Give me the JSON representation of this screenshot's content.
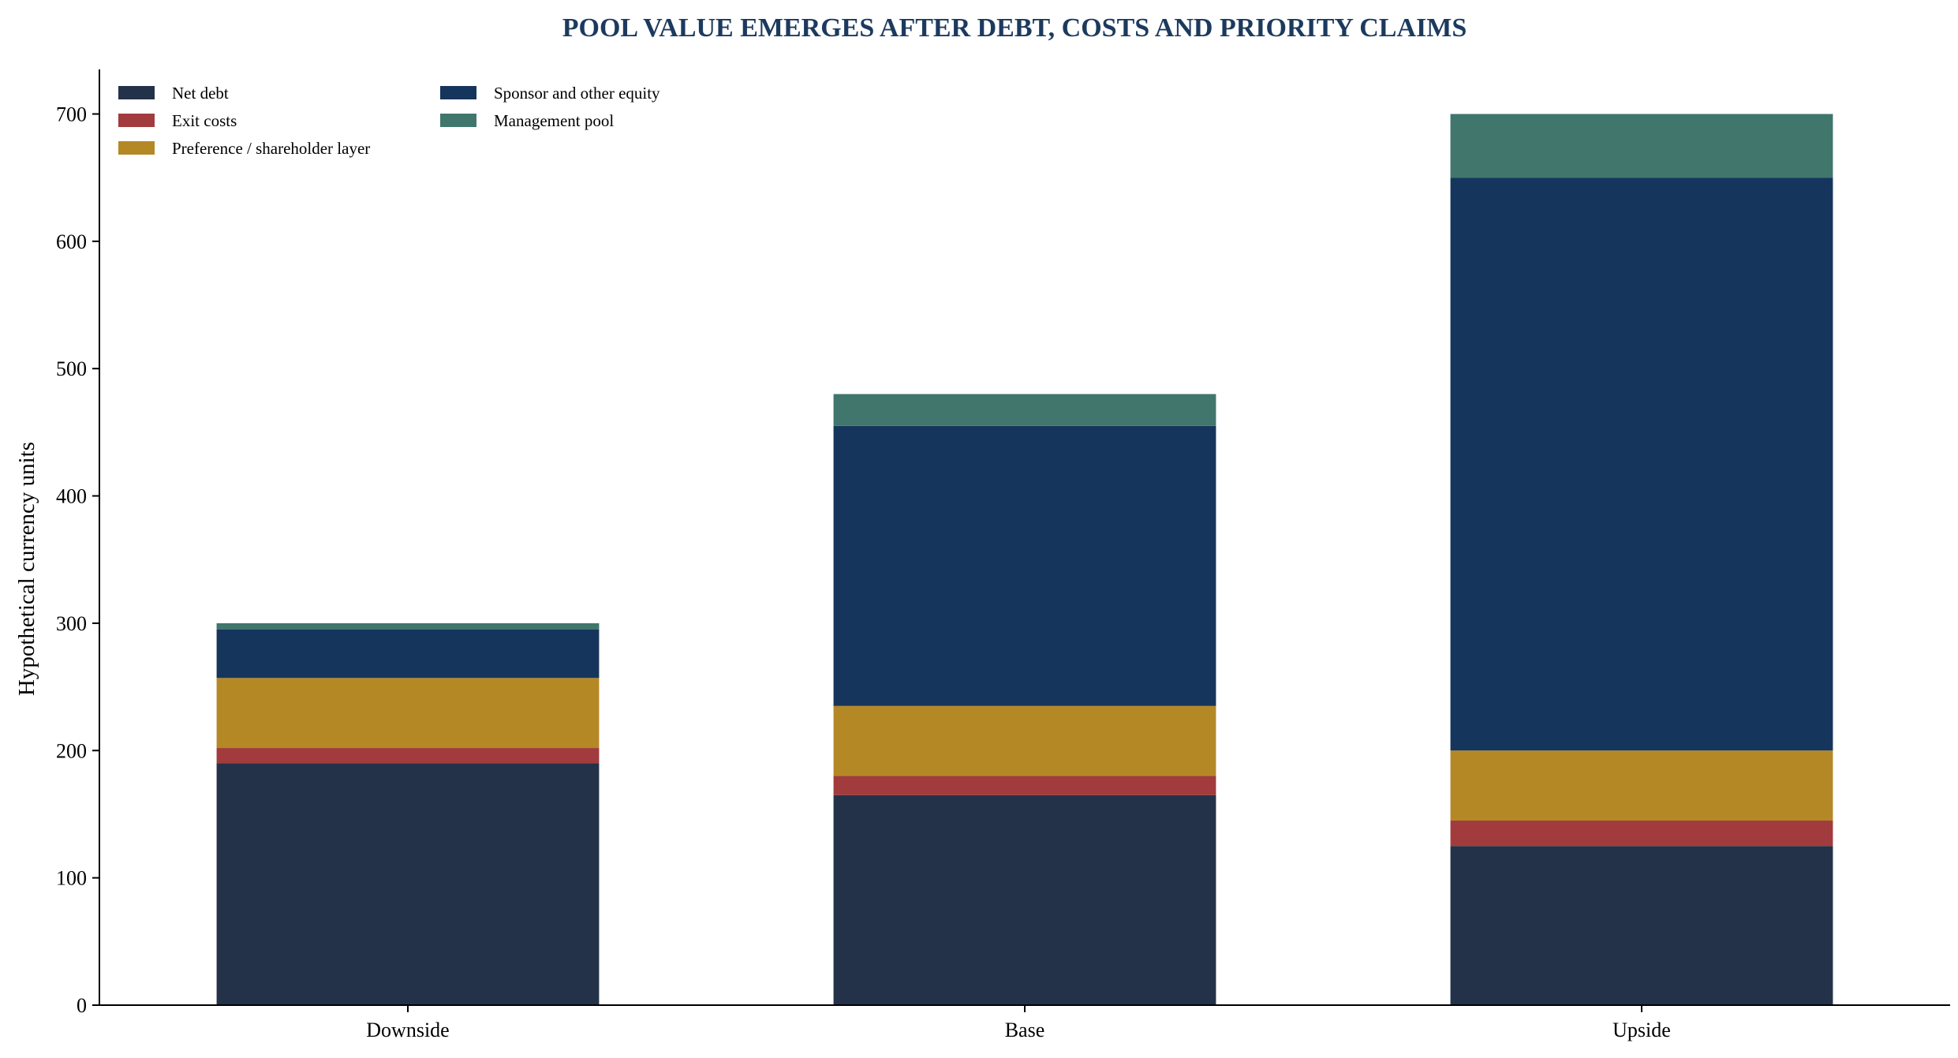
{
  "chart_data": {
    "type": "bar",
    "stacked": true,
    "title": "POOL VALUE EMERGES AFTER DEBT, COSTS AND PRIORITY CLAIMS",
    "title_color": "#1c3a5e",
    "xlabel": "",
    "ylabel": "Hypothetical currency units",
    "ylim": [
      0,
      735
    ],
    "yticks": [
      0,
      100,
      200,
      300,
      400,
      500,
      600,
      700
    ],
    "grid": false,
    "legend_position": "top-left",
    "categories": [
      "Downside",
      "Base",
      "Upside"
    ],
    "series": [
      {
        "name": "Net debt",
        "color": "#243249",
        "values": [
          190,
          165,
          125
        ]
      },
      {
        "name": "Exit costs",
        "color": "#a13b3d",
        "values": [
          12,
          15,
          20
        ]
      },
      {
        "name": "Preference / shareholder layer",
        "color": "#b58826",
        "values": [
          55,
          55,
          55
        ]
      },
      {
        "name": "Sponsor and other equity",
        "color": "#16355c",
        "values": [
          38,
          220,
          450
        ]
      },
      {
        "name": "Management pool",
        "color": "#40766c",
        "values": [
          5,
          25,
          50
        ]
      }
    ]
  }
}
